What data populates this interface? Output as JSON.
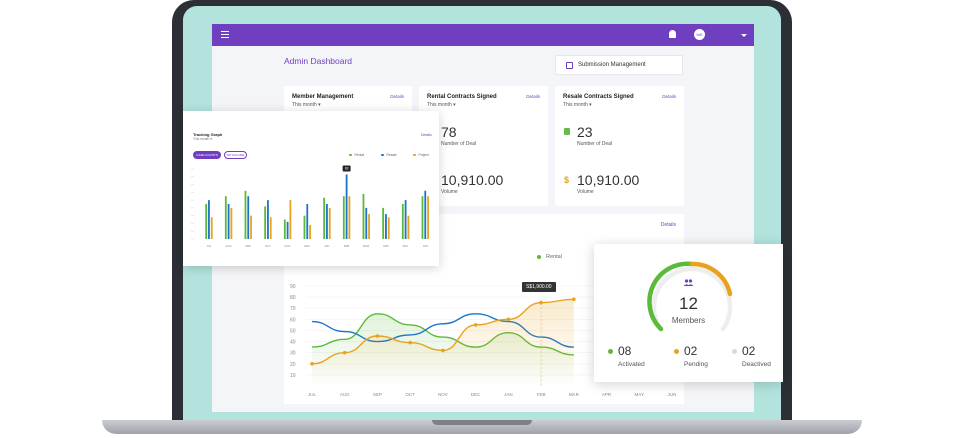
{
  "header": {
    "avatar_initials": "MK"
  },
  "dashboard": {
    "title": "Admin Dashboard",
    "submission_button": "Submission Management"
  },
  "cards": {
    "member": {
      "title": "Member Management",
      "period": "This month",
      "details": "Details"
    },
    "rental": {
      "title": "Rental Contracts Signed",
      "period": "This month",
      "details": "Details",
      "deals": "78",
      "deals_label": "Number of Deal",
      "volume": "10,910.00",
      "volume_label": "Volume"
    },
    "resale": {
      "title": "Resale Contracts Signed",
      "period": "This month",
      "details": "Details",
      "deals": "23",
      "deals_label": "Number of Deal",
      "volume_symbol": "$",
      "volume": "10,910.00",
      "volume_label": "Volume"
    }
  },
  "volume_chart": {
    "details": "Details",
    "legend": "Rental",
    "tooltip": "S$1,900.00",
    "chart_data": {
      "type": "line",
      "x": [
        "JUL",
        "AUG",
        "SEP",
        "OCT",
        "NOV",
        "DEC",
        "JAN",
        "FEB",
        "MAR",
        "APR",
        "MAY",
        "JUN"
      ],
      "yticks": [
        "90",
        "80",
        "70",
        "60",
        "50",
        "40",
        "30",
        "20",
        "10"
      ],
      "ylim": [
        0,
        90
      ],
      "series": [
        {
          "name": "Rental",
          "color": "#5aba3a",
          "values": [
            35,
            42,
            65,
            55,
            44,
            35,
            48,
            35,
            28,
            null,
            null,
            null
          ]
        },
        {
          "color": "#1c73c9",
          "values": [
            58,
            49,
            40,
            46,
            56,
            65,
            58,
            44,
            35,
            null,
            null,
            null
          ]
        },
        {
          "color": "#e8a21e",
          "values": [
            20,
            30,
            45,
            39,
            32,
            55,
            60,
            75,
            78,
            null,
            null,
            null
          ]
        }
      ]
    }
  },
  "tracking_graph": {
    "title": "Tracking Graph",
    "period": "This month",
    "details": "Details",
    "btn_primary": "CASE COUNTS",
    "btn_secondary": "SD VOLUME",
    "legend": [
      "Rental",
      "Resale",
      "Project"
    ],
    "tooltip": "83",
    "chart_data": {
      "type": "bar",
      "categories": [
        "JUL",
        "AUG",
        "SEP",
        "OCT",
        "NOV",
        "DEC",
        "JAN",
        "FEB",
        "MAR",
        "APR",
        "MAY",
        "JUN"
      ],
      "ylim": [
        0,
        90
      ],
      "series": [
        {
          "name": "Rental",
          "color": "#5aba3a",
          "values": [
            45,
            55,
            62,
            42,
            25,
            30,
            53,
            55,
            58,
            40,
            45,
            55
          ]
        },
        {
          "name": "Resale",
          "color": "#1c73c9",
          "values": [
            50,
            45,
            55,
            50,
            22,
            45,
            45,
            83,
            40,
            32,
            50,
            62
          ]
        },
        {
          "name": "Project",
          "color": "#e8a21e",
          "values": [
            28,
            40,
            30,
            28,
            50,
            18,
            40,
            55,
            32,
            28,
            30,
            55
          ]
        }
      ]
    }
  },
  "members": {
    "count": "12",
    "label": "Members",
    "activated": "08",
    "activated_label": "Activated",
    "pending": "02",
    "pending_label": "Pending",
    "deactived": "02",
    "deactived_label": "Deactived",
    "colors": {
      "activated": "#5aba3a",
      "pending": "#e8a21e",
      "deactived": "#d9d9d9"
    }
  }
}
